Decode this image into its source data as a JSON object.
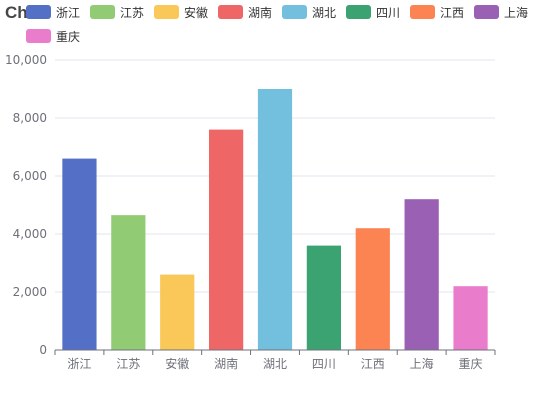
{
  "title": "Chart",
  "chart_data": {
    "type": "bar",
    "title": "Chart",
    "xlabel": "",
    "ylabel": "",
    "ylim": [
      0,
      10000
    ],
    "yticks": [
      0,
      2000,
      4000,
      6000,
      8000,
      10000
    ],
    "ytick_labels": [
      "0",
      "2,000",
      "4,000",
      "6,000",
      "8,000",
      "10,000"
    ],
    "grid": true,
    "legend_position": "top",
    "categories": [
      "浙江",
      "江苏",
      "安徽",
      "湖南",
      "湖北",
      "四川",
      "江西",
      "上海",
      "重庆"
    ],
    "values": [
      6600,
      4650,
      2600,
      7600,
      9000,
      3600,
      4200,
      5200,
      2200
    ],
    "colors": [
      "#5470c6",
      "#91cc75",
      "#fac858",
      "#ee6666",
      "#73c0de",
      "#3ba272",
      "#fc8452",
      "#9a60b4",
      "#ea7ccc"
    ]
  }
}
